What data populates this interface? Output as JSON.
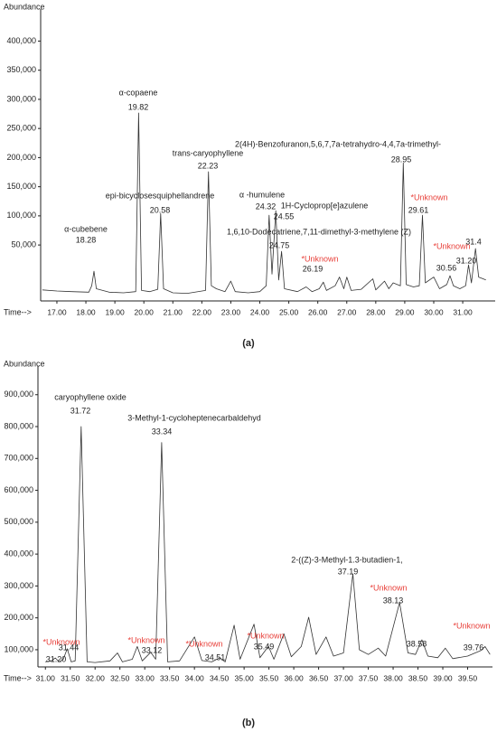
{
  "chart_data": [
    {
      "type": "line",
      "y_label": "Abundance",
      "x_label": "Time-->",
      "caption": "(a)",
      "color": "#333333",
      "xlim": [
        16.44,
        32.12
      ],
      "ylim": [
        -46000,
        455000
      ],
      "xticks": [
        {
          "value": 17,
          "label": "17.00"
        },
        {
          "value": 18,
          "label": "18.00"
        },
        {
          "value": 19,
          "label": "19.00"
        },
        {
          "value": 20,
          "label": "20.00"
        },
        {
          "value": 21,
          "label": "21.00"
        },
        {
          "value": 22,
          "label": "22.00"
        },
        {
          "value": 23,
          "label": "23.00"
        },
        {
          "value": 24,
          "label": "24.00"
        },
        {
          "value": 25,
          "label": "25.00"
        },
        {
          "value": 26,
          "label": "26.00"
        },
        {
          "value": 27,
          "label": "27.00"
        },
        {
          "value": 28,
          "label": "28.00"
        },
        {
          "value": 29,
          "label": "29.00"
        },
        {
          "value": 30,
          "label": "30.00"
        },
        {
          "value": 31,
          "label": "31.00"
        }
      ],
      "yticks": [
        {
          "value": 50000,
          "label": "50,000"
        },
        {
          "value": 100000,
          "label": "100,000"
        },
        {
          "value": 150000,
          "label": "150,000"
        },
        {
          "value": 200000,
          "label": "200,000"
        },
        {
          "value": 250000,
          "label": "250,000"
        },
        {
          "value": 300000,
          "label": "300,000"
        },
        {
          "value": 350000,
          "label": "350,000"
        },
        {
          "value": 400000,
          "label": "400,000"
        }
      ],
      "x": [
        16.5,
        17.0,
        17.5,
        18.1,
        18.2,
        18.28,
        18.36,
        18.8,
        19.3,
        19.72,
        19.82,
        19.92,
        20.2,
        20.48,
        20.58,
        20.68,
        21.0,
        21.5,
        22.13,
        22.23,
        22.33,
        22.5,
        22.8,
        23.0,
        23.15,
        23.6,
        24.0,
        24.22,
        24.32,
        24.42,
        24.55,
        24.65,
        24.75,
        24.85,
        25.3,
        25.6,
        25.8,
        26.05,
        26.19,
        26.3,
        26.6,
        26.75,
        26.9,
        27.0,
        27.15,
        27.5,
        27.9,
        28.0,
        28.3,
        28.45,
        28.6,
        28.85,
        28.95,
        29.05,
        29.3,
        29.5,
        29.61,
        29.71,
        30.0,
        30.2,
        30.45,
        30.56,
        30.68,
        30.9,
        31.1,
        31.2,
        31.3,
        31.44,
        31.55,
        31.8
      ],
      "values": [
        -27000,
        -29000,
        -30000,
        -31000,
        -20000,
        5000,
        -25000,
        -31000,
        -32000,
        -30000,
        276700,
        -28000,
        -30000,
        -26000,
        104000,
        -25000,
        -32000,
        -33000,
        -28000,
        175800,
        -20000,
        -25000,
        -30000,
        -12000,
        -30000,
        -32000,
        -30000,
        -20000,
        101000,
        0,
        109000,
        -10000,
        39000,
        -25000,
        -30000,
        -22000,
        -30000,
        -25000,
        -13700,
        -28000,
        -20000,
        -5000,
        -25000,
        -5000,
        -28000,
        -26000,
        -8000,
        -27000,
        -12000,
        -25000,
        -15000,
        -20000,
        191000,
        -18000,
        -22000,
        -20000,
        101000,
        -15000,
        -5000,
        -25000,
        -18000,
        -2800,
        -20000,
        -25000,
        -20000,
        15800,
        -15000,
        44000,
        -5000,
        -10000
      ],
      "peaks": [
        {
          "x": 18.28,
          "label": "18.28",
          "name": "α-cubebene"
        },
        {
          "x": 19.82,
          "label": "19.82",
          "name": "α-copaene"
        },
        {
          "x": 20.58,
          "label": "20.58",
          "name": "epi-bicyclosesquiphellandrene"
        },
        {
          "x": 22.23,
          "label": "22.23",
          "name": "trans-caryophyllene"
        },
        {
          "x": 24.32,
          "label": "24.32",
          "name": "α -humulene"
        },
        {
          "x": 24.55,
          "label": "24.55",
          "name": "1H-Cycloprop[e]azulene"
        },
        {
          "x": 24.75,
          "label": "24.75",
          "name": "1,6,10-Dodecatriene,7,11-dimethyl-3-methylene (Z)"
        },
        {
          "x": 26.19,
          "label": "26.19",
          "name": "*Unknown",
          "color": "#e8403a"
        },
        {
          "x": 28.95,
          "label": "28.95",
          "name": "2(4H)-Benzofuranon,5,6,7,7a-tetrahydro-4,4,7a-trimethyl-"
        },
        {
          "x": 29.61,
          "label": "29.61",
          "name": "*Unknown",
          "color": "#e8403a"
        },
        {
          "x": 30.56,
          "label": "30.56"
        },
        {
          "x": 31.2,
          "label": "31.20",
          "name": "*Unknown",
          "color": "#e8403a"
        },
        {
          "x": 31.44,
          "label": "31.4"
        }
      ]
    },
    {
      "type": "line",
      "y_label": "Abundance",
      "x_label": "Time-->",
      "caption": "(b)",
      "color": "#333333",
      "xlim": [
        30.85,
        40.0
      ],
      "ylim": [
        46000,
        990000
      ],
      "xticks": [
        {
          "value": 31,
          "label": "31.00"
        },
        {
          "value": 31.5,
          "label": "31.50"
        },
        {
          "value": 32,
          "label": "32.00"
        },
        {
          "value": 32.5,
          "label": "32.50"
        },
        {
          "value": 33,
          "label": "33.00"
        },
        {
          "value": 33.5,
          "label": "33.50"
        },
        {
          "value": 34,
          "label": "34.00"
        },
        {
          "value": 34.5,
          "label": "34.50"
        },
        {
          "value": 35,
          "label": "35.00"
        },
        {
          "value": 35.5,
          "label": "35.50"
        },
        {
          "value": 36,
          "label": "36.00"
        },
        {
          "value": 36.5,
          "label": "36.50"
        },
        {
          "value": 37,
          "label": "37.00"
        },
        {
          "value": 37.5,
          "label": "37.50"
        },
        {
          "value": 38,
          "label": "38.00"
        },
        {
          "value": 38.5,
          "label": "38.50"
        },
        {
          "value": 39,
          "label": "39.00"
        },
        {
          "value": 39.5,
          "label": "39.50"
        }
      ],
      "yticks": [
        {
          "value": 100000,
          "label": "100,000"
        },
        {
          "value": 200000,
          "label": "200,000"
        },
        {
          "value": 300000,
          "label": "300,000"
        },
        {
          "value": 400000,
          "label": "400,000"
        },
        {
          "value": 500000,
          "label": "500,000"
        },
        {
          "value": 600000,
          "label": "600,000"
        },
        {
          "value": 700000,
          "label": "700,000"
        },
        {
          "value": 800000,
          "label": "800,000"
        },
        {
          "value": 900000,
          "label": "900,000"
        }
      ],
      "x": [
        31.0,
        31.12,
        31.2,
        31.28,
        31.36,
        31.44,
        31.52,
        31.6,
        31.72,
        31.84,
        32.0,
        32.3,
        32.45,
        32.55,
        32.75,
        32.85,
        32.95,
        33.12,
        33.22,
        33.34,
        33.46,
        33.7,
        34.0,
        34.15,
        34.35,
        34.51,
        34.62,
        34.8,
        34.92,
        35.2,
        35.32,
        35.49,
        35.6,
        35.8,
        35.95,
        36.15,
        36.3,
        36.45,
        36.65,
        36.8,
        37.0,
        37.19,
        37.32,
        37.5,
        37.7,
        37.85,
        38.13,
        38.3,
        38.45,
        38.58,
        38.7,
        38.9,
        39.05,
        39.2,
        39.5,
        39.76,
        39.85,
        39.95
      ],
      "values": [
        62000,
        65000,
        74000,
        62000,
        70000,
        103000,
        62000,
        65000,
        800000,
        62000,
        60000,
        65000,
        90000,
        62000,
        70000,
        110000,
        65000,
        92000,
        70000,
        750000,
        62000,
        65000,
        140000,
        66000,
        62000,
        75000,
        62000,
        177000,
        70000,
        180000,
        75000,
        111000,
        70000,
        150000,
        78000,
        110000,
        202000,
        85000,
        140000,
        80000,
        90000,
        338000,
        100000,
        85000,
        105000,
        80000,
        248000,
        90000,
        85000,
        131000,
        80000,
        75000,
        105000,
        72000,
        80000,
        97000,
        110000,
        85000
      ],
      "peaks": [
        {
          "x": 31.2,
          "label": "31.20",
          "name": "*Unknown",
          "color": "#e8403a"
        },
        {
          "x": 31.44,
          "label": "31.44"
        },
        {
          "x": 31.72,
          "label": "31.72",
          "name": "caryophyllene oxide"
        },
        {
          "x": 33.12,
          "label": "33.12",
          "name": "*Unknown",
          "color": "#e8403a"
        },
        {
          "x": 33.34,
          "label": "33.34",
          "name": "3-Methyl-1-cycloheptenecarbaldehyd"
        },
        {
          "x": 34.51,
          "label": "34.51",
          "name": "*Unknown",
          "color": "#e8403a"
        },
        {
          "x": 35.49,
          "label": "35.49",
          "name": "*Unknown",
          "color": "#e8403a"
        },
        {
          "x": 37.19,
          "label": "37.19",
          "name": "2-((Z)-3-Methyl-1.3-butadien-1,"
        },
        {
          "x": 38.13,
          "label": "38.13",
          "name": "*Unknown",
          "color": "#e8403a"
        },
        {
          "x": 38.58,
          "label": "38.58"
        },
        {
          "x": 39.76,
          "label": "39.76",
          "name": "*Unknown",
          "color": "#e8403a"
        }
      ]
    }
  ]
}
